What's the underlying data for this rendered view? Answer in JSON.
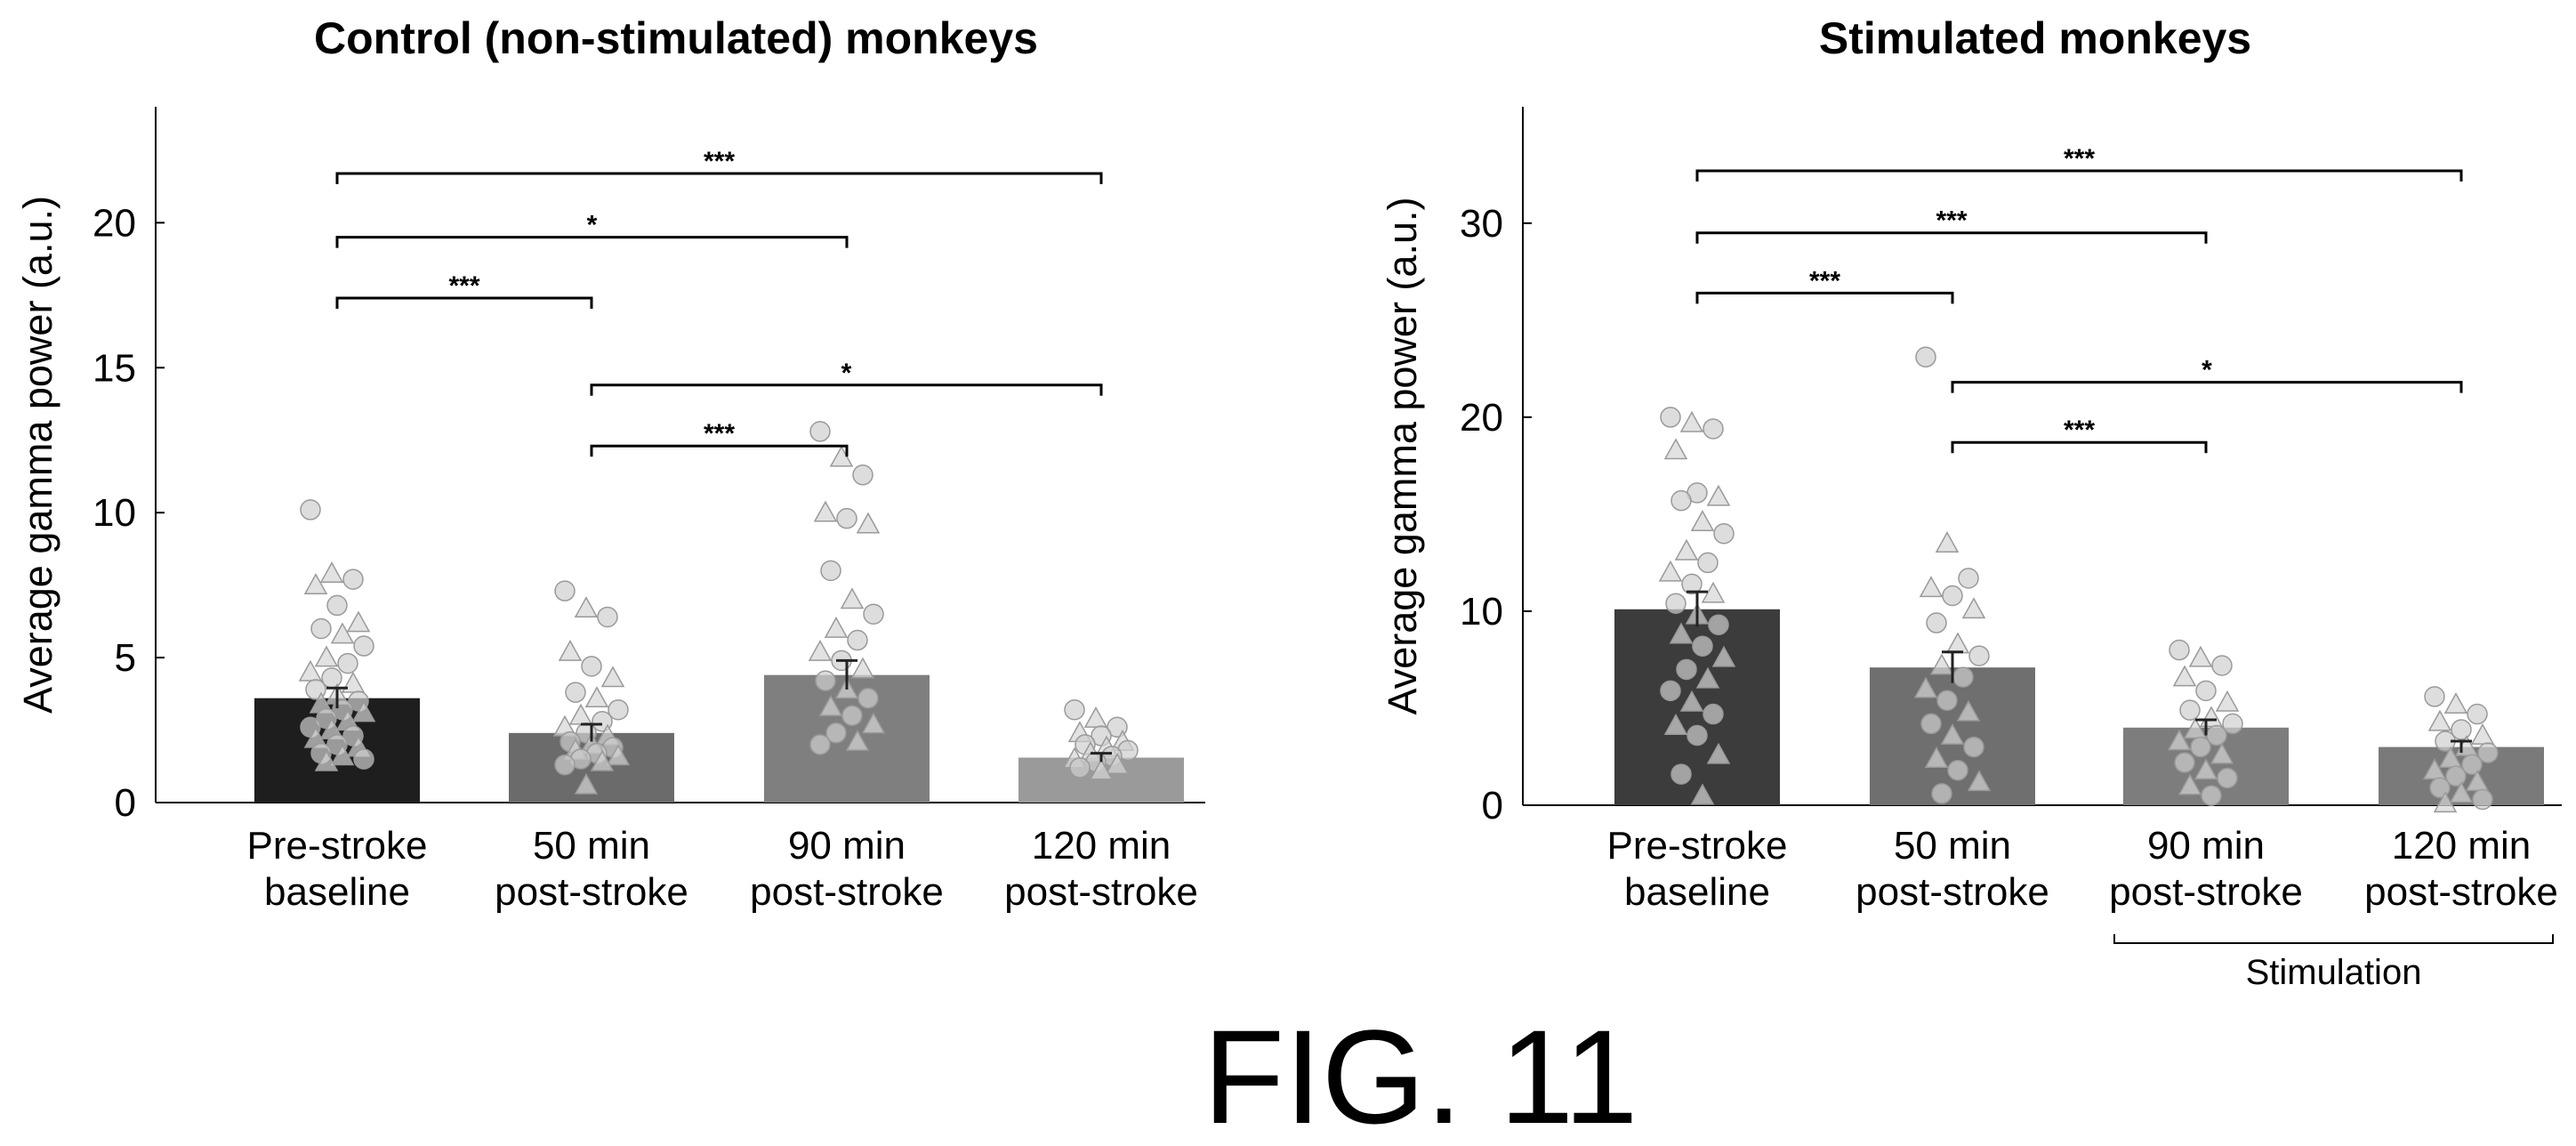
{
  "figure_label": "FIG. 11",
  "chart_data": [
    {
      "type": "bar",
      "title": "Control (non-stimulated) monkeys",
      "xlabel": "",
      "ylabel": "Average gamma power (a.u.)",
      "ylim": [
        0,
        24
      ],
      "yticks": [
        0,
        5,
        10,
        15,
        20
      ],
      "categories": [
        [
          "Pre-stroke",
          "baseline"
        ],
        [
          "50 min",
          "post-stroke"
        ],
        [
          "90 min",
          "post-stroke"
        ],
        [
          "120 min",
          "post-stroke"
        ]
      ],
      "values": [
        3.6,
        2.4,
        4.4,
        1.55
      ],
      "errors": [
        0.35,
        0.3,
        0.5,
        0.15
      ],
      "bar_colors": [
        "#1e1e1e",
        "#6b6b6b",
        "#7f7f7f",
        "#9a9a9a"
      ],
      "points": [
        [
          10.1,
          7.9,
          7.7,
          7.5,
          6.8,
          6.2,
          6.0,
          5.8,
          5.4,
          5.0,
          4.8,
          4.5,
          4.3,
          4.1,
          3.9,
          3.7,
          3.5,
          3.4,
          3.2,
          3.1,
          2.9,
          2.8,
          2.6,
          2.5,
          2.3,
          2.2,
          2.0,
          1.9,
          1.7,
          1.6,
          1.5,
          1.4
        ],
        [
          7.3,
          6.7,
          6.4,
          5.2,
          4.7,
          4.3,
          3.8,
          3.6,
          3.2,
          3.0,
          2.8,
          2.6,
          2.4,
          2.3,
          2.1,
          2.0,
          1.9,
          1.8,
          1.7,
          1.6,
          1.5,
          1.4,
          1.3,
          0.6
        ],
        [
          12.8,
          11.9,
          11.3,
          10.0,
          9.8,
          9.6,
          8.0,
          7.0,
          6.5,
          6.0,
          5.6,
          5.2,
          4.9,
          4.6,
          4.2,
          3.9,
          3.6,
          3.3,
          3.0,
          2.7,
          2.4,
          2.1,
          2.0
        ],
        [
          3.2,
          2.9,
          2.6,
          2.4,
          2.3,
          2.1,
          2.0,
          1.9,
          1.8,
          1.7,
          1.6,
          1.5,
          1.4,
          1.3,
          1.2,
          1.1
        ]
      ],
      "comparisons": [
        {
          "from": 0,
          "to": 3,
          "y": 21.7,
          "label": "***"
        },
        {
          "from": 0,
          "to": 2,
          "y": 19.5,
          "label": "*"
        },
        {
          "from": 0,
          "to": 1,
          "y": 17.4,
          "label": "***"
        },
        {
          "from": 1,
          "to": 3,
          "y": 14.4,
          "label": "*"
        },
        {
          "from": 1,
          "to": 2,
          "y": 12.3,
          "label": "***"
        }
      ]
    },
    {
      "type": "bar",
      "title": "Stimulated monkeys",
      "xlabel": "",
      "ylabel": "Average gamma power (a.u.)",
      "ylim": [
        0,
        36
      ],
      "yticks": [
        0,
        10,
        20,
        30
      ],
      "categories": [
        [
          "Pre-stroke",
          "baseline"
        ],
        [
          "50 min",
          "post-stroke"
        ],
        [
          "90 min",
          "post-stroke"
        ],
        [
          "120 min",
          "post-stroke"
        ]
      ],
      "values": [
        10.1,
        7.1,
        4.0,
        3.0
      ],
      "errors": [
        0.9,
        0.8,
        0.4,
        0.3
      ],
      "bar_colors": [
        "#3c3c3c",
        "#6f6f6f",
        "#7d7d7d",
        "#7a7a7a"
      ],
      "points": [
        [
          20.0,
          19.7,
          19.4,
          18.3,
          16.1,
          15.9,
          15.7,
          14.6,
          14.0,
          13.1,
          12.5,
          12.0,
          11.4,
          10.9,
          10.4,
          9.8,
          9.3,
          8.8,
          8.2,
          7.6,
          7.0,
          6.5,
          5.9,
          5.3,
          4.7,
          4.1,
          3.6,
          2.6,
          1.6,
          0.5
        ],
        [
          23.1,
          13.5,
          11.7,
          11.2,
          10.8,
          10.1,
          9.4,
          8.3,
          7.7,
          7.2,
          6.6,
          6.0,
          5.4,
          4.8,
          4.2,
          3.6,
          3.0,
          2.4,
          1.8,
          1.2,
          0.6
        ],
        [
          8.0,
          7.6,
          7.2,
          6.6,
          5.9,
          5.3,
          4.9,
          4.5,
          4.2,
          3.9,
          3.6,
          3.3,
          3.0,
          2.6,
          2.2,
          1.8,
          1.4,
          1.0,
          0.5
        ],
        [
          5.6,
          5.2,
          4.7,
          4.3,
          3.9,
          3.6,
          3.3,
          3.0,
          2.7,
          2.4,
          2.1,
          1.8,
          1.5,
          1.2,
          0.9,
          0.6,
          0.3,
          0.1
        ]
      ],
      "comparisons": [
        {
          "from": 0,
          "to": 3,
          "y": 32.7,
          "label": "***"
        },
        {
          "from": 0,
          "to": 2,
          "y": 29.5,
          "label": "***"
        },
        {
          "from": 0,
          "to": 1,
          "y": 26.4,
          "label": "***"
        },
        {
          "from": 1,
          "to": 3,
          "y": 21.8,
          "label": "*"
        },
        {
          "from": 1,
          "to": 2,
          "y": 18.7,
          "label": "***"
        }
      ],
      "group_annotation": {
        "label": "Stimulation",
        "from": 2,
        "to": 3
      }
    }
  ]
}
